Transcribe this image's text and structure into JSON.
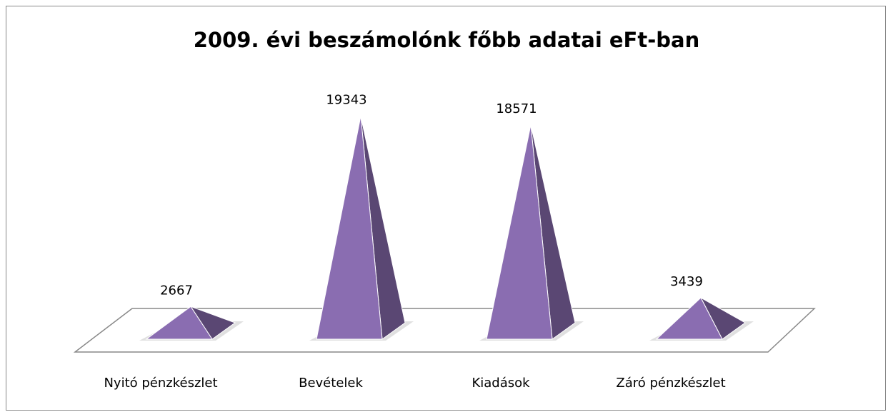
{
  "chart_data": {
    "type": "pyramid",
    "title": "2009. évi beszámolónk főbb adatai eFt-ban",
    "categories": [
      "Nyitó pénzkészlet",
      "Bevételek",
      "Kiadások",
      "Záró pénzkészlet"
    ],
    "values": [
      2667,
      19343,
      18571,
      3439
    ],
    "color": "#8a6db1",
    "ylim": [
      0,
      20000
    ]
  }
}
